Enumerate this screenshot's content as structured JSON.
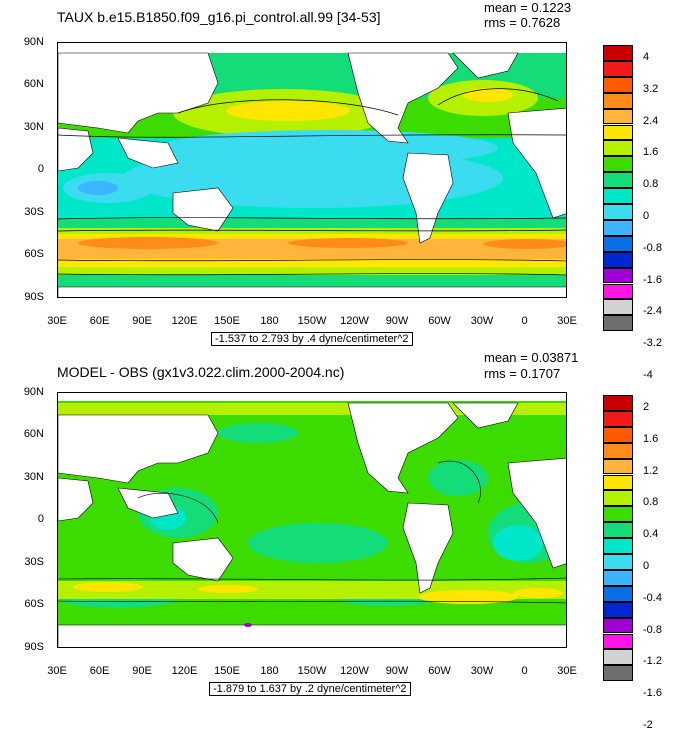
{
  "panels": [
    {
      "title": "TAUX b.e15.B1850.f09_g16.pi_control.all.99 [34-53]",
      "mean": "mean = 0.1223",
      "rms": "rms = 0.7628",
      "range_label": "-1.537 to 2.793 by .4 dyne/centimeter^2",
      "legend_labels": [
        "4",
        "3.2",
        "2.4",
        "1.6",
        "0.8",
        "0",
        "-0.8",
        "-1.6",
        "-2.4",
        "-3.2",
        "-4"
      ],
      "legend_colors": [
        "#c80000",
        "#f01a1a",
        "#ff5a00",
        "#ff8c1a",
        "#ffb43c",
        "#ffe600",
        "#b4f000",
        "#3cdc00",
        "#14dc78",
        "#00e6c8",
        "#3cdcf0",
        "#3cb4ff",
        "#0a6ee6",
        "#0028d2",
        "#a000d2",
        "#ff14e6",
        "#d2d2d2",
        "#6e6e6e"
      ]
    },
    {
      "title": "MODEL - OBS (gx1v3.022.clim.2000-2004.nc)",
      "mean": "mean = 0.03871",
      "rms": "rms = 0.1707",
      "range_label": "-1.879 to 1.637 by .2 dyne/centimeter^2",
      "legend_labels": [
        "2",
        "1.6",
        "1.2",
        "0.8",
        "0.4",
        "0",
        "-0.4",
        "-0.8",
        "-1.2",
        "-1.6",
        "-2"
      ],
      "legend_colors": [
        "#c80000",
        "#f01a1a",
        "#ff5a00",
        "#ff8c1a",
        "#ffb43c",
        "#ffe600",
        "#b4f000",
        "#3cdc00",
        "#14dc78",
        "#00e6c8",
        "#3cdcf0",
        "#3cb4ff",
        "#0a6ee6",
        "#0028d2",
        "#a000d2",
        "#ff14e6",
        "#d2d2d2",
        "#6e6e6e"
      ]
    }
  ],
  "y_ticks": [
    "90N",
    "60N",
    "30N",
    "0",
    "30S",
    "60S",
    "90S"
  ],
  "x_ticks": [
    "30E",
    "60E",
    "90E",
    "120E",
    "150E",
    "180",
    "150W",
    "120W",
    "90W",
    "60W",
    "30W",
    "0",
    "30E"
  ],
  "colors": {
    "land": "#ffffff",
    "ocean_green": "#3cdc00",
    "ocean_cyan": "#14dc78",
    "ocean_lightblue": "#00e6c8"
  }
}
